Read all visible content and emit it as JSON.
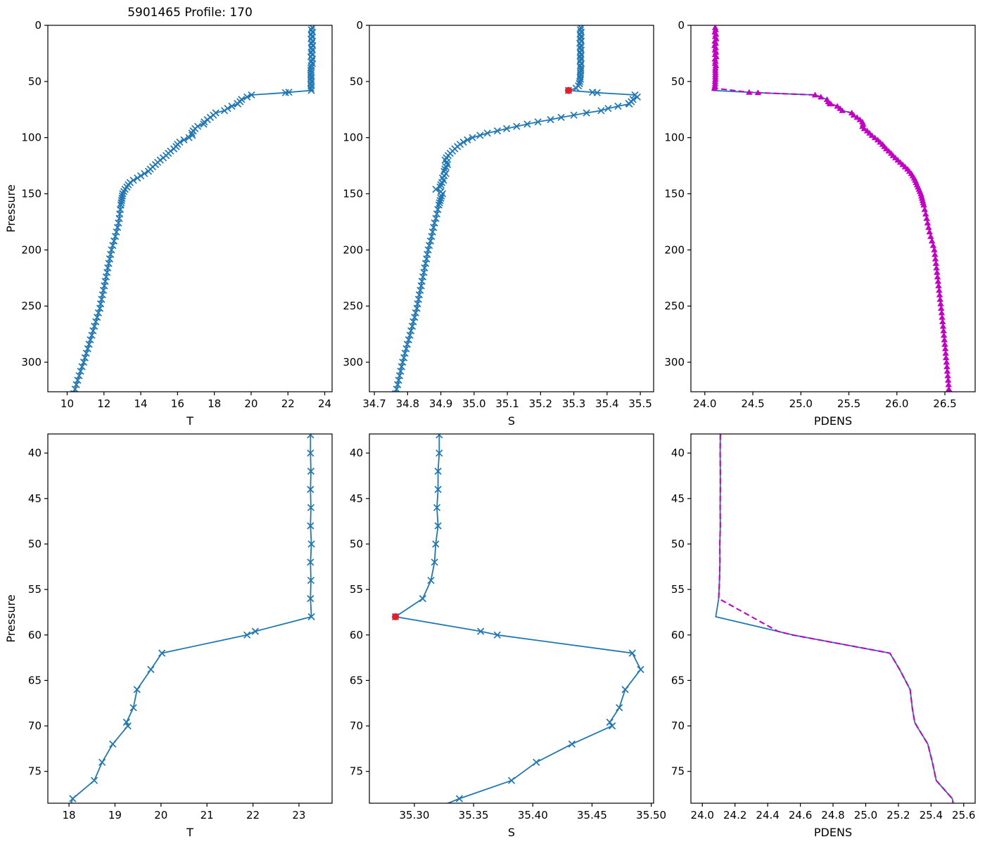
{
  "title": "5901465 Profile: 170",
  "ylabel": "Pressure",
  "colors": {
    "profile_blue": "#1f77b4",
    "pdens_magenta": "#c400c4",
    "bad_point_red": "#ed1c24",
    "axis_black": "#000000"
  },
  "chart_data": {
    "type": "line",
    "title": "5901465 Profile: 170",
    "grid": false,
    "legend": "none",
    "bad_point": {
      "pressure": 58,
      "S": 35.284,
      "marker": "red-dot"
    },
    "series_styles": {
      "T": "blue solid line with x markers",
      "S": "blue solid line with x markers, red dot at flagged point",
      "PDENS": "blue solid line underneath magenta dashed line with triangle markers (top panel only)"
    },
    "profile": {
      "columns": [
        "pressure",
        "T",
        "S",
        "PDENS"
      ],
      "rows": [
        [
          2,
          23.32,
          35.321,
          24.108
        ],
        [
          4,
          23.28,
          35.32,
          24.112
        ],
        [
          6,
          23.33,
          35.322,
          24.105
        ],
        [
          8,
          23.27,
          35.319,
          24.115
        ],
        [
          10,
          23.31,
          35.321,
          24.108
        ],
        [
          12,
          23.26,
          35.32,
          24.118
        ],
        [
          14,
          23.33,
          35.322,
          24.104
        ],
        [
          16,
          23.29,
          35.318,
          24.112
        ],
        [
          18,
          23.34,
          35.321,
          24.102
        ],
        [
          20,
          23.28,
          35.32,
          24.113
        ],
        [
          22,
          23.32,
          35.322,
          24.106
        ],
        [
          24,
          23.27,
          35.319,
          24.116
        ],
        [
          26,
          23.31,
          35.321,
          24.108
        ],
        [
          28,
          23.25,
          35.32,
          24.119
        ],
        [
          30,
          23.33,
          35.321,
          24.105
        ],
        [
          32,
          23.29,
          35.319,
          24.111
        ],
        [
          34,
          23.32,
          35.322,
          24.107
        ],
        [
          36,
          23.27,
          35.32,
          24.114
        ],
        [
          38,
          23.25,
          35.321,
          24.11
        ],
        [
          40,
          23.25,
          35.321,
          24.109
        ],
        [
          42,
          23.26,
          35.32,
          24.11
        ],
        [
          44,
          23.25,
          35.32,
          24.11
        ],
        [
          46,
          23.26,
          35.319,
          24.109
        ],
        [
          48,
          23.25,
          35.32,
          24.11
        ],
        [
          50,
          23.27,
          35.318,
          24.107
        ],
        [
          52,
          23.25,
          35.317,
          24.108
        ],
        [
          54,
          23.26,
          35.314,
          24.105
        ],
        [
          56,
          23.25,
          35.307,
          24.1
        ],
        [
          58,
          23.27,
          35.284,
          24.082
        ],
        [
          59.6,
          22.05,
          35.356,
          24.462
        ],
        [
          60,
          21.87,
          35.37,
          24.553
        ],
        [
          62,
          20.02,
          35.484,
          25.148
        ],
        [
          63.8,
          19.78,
          35.491,
          25.208
        ],
        [
          66,
          19.48,
          35.478,
          25.272
        ],
        [
          68,
          19.4,
          35.473,
          25.285
        ],
        [
          69.6,
          19.25,
          35.465,
          25.3
        ],
        [
          70,
          19.28,
          35.467,
          25.312
        ],
        [
          72,
          18.95,
          35.433,
          25.38
        ],
        [
          74,
          18.72,
          35.403,
          25.408
        ],
        [
          76,
          18.55,
          35.382,
          25.432
        ],
        [
          78,
          18.08,
          35.338,
          25.53
        ],
        [
          80,
          17.95,
          35.3,
          25.55
        ],
        [
          82,
          17.78,
          35.262,
          25.585
        ],
        [
          84,
          17.62,
          35.23,
          25.615
        ],
        [
          86,
          17.45,
          35.192,
          25.64
        ],
        [
          88,
          17.42,
          35.16,
          25.648
        ],
        [
          90,
          17.1,
          35.128,
          25.642
        ],
        [
          92,
          16.95,
          35.098,
          25.66
        ],
        [
          94,
          16.85,
          35.07,
          25.69
        ],
        [
          96,
          16.78,
          35.04,
          25.715
        ],
        [
          98,
          16.8,
          35.018,
          25.74
        ],
        [
          100,
          16.62,
          34.995,
          25.77
        ],
        [
          102,
          16.35,
          34.98,
          25.8
        ],
        [
          104,
          16.12,
          34.968,
          25.825
        ],
        [
          106,
          16.0,
          34.958,
          25.85
        ],
        [
          108,
          15.92,
          34.95,
          25.87
        ],
        [
          110,
          15.8,
          34.942,
          25.89
        ],
        [
          112,
          15.62,
          34.935,
          25.915
        ],
        [
          114,
          15.5,
          34.928,
          25.94
        ],
        [
          116,
          15.38,
          34.922,
          25.96
        ],
        [
          118,
          15.22,
          34.917,
          25.985
        ],
        [
          120,
          15.06,
          34.913,
          26.01
        ],
        [
          122,
          14.92,
          34.918,
          26.035
        ],
        [
          124,
          14.8,
          34.92,
          26.06
        ],
        [
          126,
          14.65,
          34.915,
          26.085
        ],
        [
          128,
          14.52,
          34.912,
          26.11
        ],
        [
          130,
          14.42,
          34.91,
          26.13
        ],
        [
          132,
          14.2,
          34.915,
          26.15
        ],
        [
          134,
          14.0,
          34.91,
          26.165
        ],
        [
          136,
          13.82,
          34.905,
          26.18
        ],
        [
          138,
          13.6,
          34.908,
          26.19
        ],
        [
          140,
          13.42,
          34.903,
          26.2
        ],
        [
          142,
          13.32,
          34.9,
          26.21
        ],
        [
          144,
          13.25,
          34.898,
          26.22
        ],
        [
          146,
          13.15,
          34.885,
          26.23
        ],
        [
          148,
          13.08,
          34.9,
          26.24
        ],
        [
          150,
          13.02,
          34.905,
          26.25
        ],
        [
          152,
          13.0,
          34.902,
          26.256
        ],
        [
          154,
          12.98,
          34.9,
          26.262
        ],
        [
          156,
          12.96,
          34.898,
          26.268
        ],
        [
          158,
          12.94,
          34.896,
          26.274
        ],
        [
          160,
          12.92,
          34.894,
          26.28
        ],
        [
          164,
          12.89,
          34.891,
          26.29
        ],
        [
          168,
          12.86,
          34.888,
          26.3
        ],
        [
          172,
          12.83,
          34.885,
          26.31
        ],
        [
          176,
          12.79,
          34.881,
          26.32
        ],
        [
          180,
          12.74,
          34.878,
          26.33
        ],
        [
          184,
          12.68,
          34.875,
          26.34
        ],
        [
          188,
          12.62,
          34.872,
          26.352
        ],
        [
          192,
          12.55,
          34.869,
          26.365
        ],
        [
          196,
          12.48,
          34.865,
          26.378
        ],
        [
          200,
          12.41,
          34.862,
          26.39
        ],
        [
          204,
          12.36,
          34.859,
          26.396
        ],
        [
          208,
          12.31,
          34.857,
          26.401
        ],
        [
          212,
          12.26,
          34.854,
          26.407
        ],
        [
          216,
          12.21,
          34.851,
          26.412
        ],
        [
          220,
          12.17,
          34.849,
          26.418
        ],
        [
          224,
          12.12,
          34.846,
          26.423
        ],
        [
          228,
          12.07,
          34.843,
          26.429
        ],
        [
          232,
          12.02,
          34.841,
          26.434
        ],
        [
          236,
          11.97,
          34.838,
          26.44
        ],
        [
          240,
          11.92,
          34.835,
          26.445
        ],
        [
          244,
          11.87,
          34.833,
          26.45
        ],
        [
          248,
          11.82,
          34.83,
          26.456
        ],
        [
          252,
          11.78,
          34.828,
          26.461
        ],
        [
          256,
          11.7,
          34.824,
          26.466
        ],
        [
          260,
          11.63,
          34.821,
          26.471
        ],
        [
          264,
          11.56,
          34.817,
          26.476
        ],
        [
          268,
          11.48,
          34.814,
          26.481
        ],
        [
          272,
          11.41,
          34.81,
          26.486
        ],
        [
          276,
          11.34,
          34.807,
          26.49
        ],
        [
          280,
          11.26,
          34.803,
          26.495
        ],
        [
          284,
          11.19,
          34.799,
          26.499
        ],
        [
          288,
          11.12,
          34.796,
          26.504
        ],
        [
          292,
          11.04,
          34.792,
          26.508
        ],
        [
          296,
          10.97,
          34.789,
          26.512
        ],
        [
          300,
          10.9,
          34.785,
          26.517
        ],
        [
          304,
          10.81,
          34.782,
          26.521
        ],
        [
          308,
          10.73,
          34.779,
          26.525
        ],
        [
          312,
          10.65,
          34.776,
          26.53
        ],
        [
          316,
          10.57,
          34.773,
          26.534
        ],
        [
          320,
          10.5,
          34.77,
          26.538
        ],
        [
          324,
          10.43,
          34.767,
          26.542
        ],
        [
          328,
          10.37,
          34.764,
          26.546
        ],
        [
          332,
          10.32,
          34.761,
          26.55
        ],
        [
          336,
          10.28,
          34.758,
          26.554
        ],
        [
          338,
          10.26,
          34.756,
          26.556
        ]
      ]
    },
    "panels": [
      {
        "name": "temperature-full",
        "xlabel": "T",
        "x_var": "T",
        "xlim": [
          8.95,
          24.4
        ],
        "xticks": [
          10,
          12,
          14,
          16,
          18,
          20,
          22,
          24
        ],
        "xtick_decimals": 0,
        "ylim": [
          0,
          326.3
        ],
        "yticks": [
          0,
          50,
          100,
          150,
          200,
          250,
          300
        ],
        "p_range": [
          0,
          340
        ],
        "style": "blue-x",
        "red_dot": false,
        "show_title": true
      },
      {
        "name": "salinity-full",
        "xlabel": "S",
        "x_var": "S",
        "xlim": [
          34.685,
          35.54
        ],
        "xticks": [
          34.7,
          34.8,
          34.9,
          35.0,
          35.1,
          35.2,
          35.3,
          35.4,
          35.5
        ],
        "xtick_decimals": 1,
        "ylim": [
          0,
          326.3
        ],
        "yticks": [
          0,
          50,
          100,
          150,
          200,
          250,
          300
        ],
        "p_range": [
          0,
          340
        ],
        "style": "blue-x",
        "red_dot": true
      },
      {
        "name": "pdens-full",
        "xlabel": "PDENS",
        "x_var": "PDENS",
        "xlim": [
          23.855,
          26.815
        ],
        "xticks": [
          24.0,
          24.5,
          25.0,
          25.5,
          26.0,
          26.5
        ],
        "xtick_decimals": 1,
        "ylim": [
          0,
          326.3
        ],
        "yticks": [
          0,
          50,
          100,
          150,
          200,
          250,
          300
        ],
        "p_range": [
          0,
          340
        ],
        "style": "pdens",
        "triangles": true
      },
      {
        "name": "temperature-zoom",
        "xlabel": "T",
        "x_var": "T",
        "xlim": [
          17.54,
          23.72
        ],
        "xticks": [
          18,
          19,
          20,
          21,
          22,
          23
        ],
        "xtick_decimals": 0,
        "ylim": [
          37.9,
          78.5
        ],
        "yticks": [
          40,
          45,
          50,
          55,
          60,
          65,
          70,
          75
        ],
        "p_range": [
          35,
          81
        ],
        "style": "blue-x",
        "red_dot": false
      },
      {
        "name": "salinity-zoom",
        "xlabel": "S",
        "x_var": "S",
        "xlim": [
          35.262,
          35.502
        ],
        "xticks": [
          35.3,
          35.35,
          35.4,
          35.45,
          35.5
        ],
        "xtick_decimals": 2,
        "ylim": [
          37.9,
          78.5
        ],
        "yticks": [
          40,
          45,
          50,
          55,
          60,
          65,
          70,
          75
        ],
        "p_range": [
          35,
          81
        ],
        "style": "blue-x",
        "red_dot": true
      },
      {
        "name": "pdens-zoom",
        "xlabel": "PDENS",
        "x_var": "PDENS",
        "xlim": [
          23.93,
          25.67
        ],
        "xticks": [
          24.0,
          24.2,
          24.4,
          24.6,
          24.8,
          25.0,
          25.2,
          25.4,
          25.6
        ],
        "xtick_decimals": 1,
        "ylim": [
          37.9,
          78.5
        ],
        "yticks": [
          40,
          45,
          50,
          55,
          60,
          65,
          70,
          75
        ],
        "p_range": [
          35,
          81
        ],
        "style": "pdens",
        "triangles": false
      }
    ]
  }
}
